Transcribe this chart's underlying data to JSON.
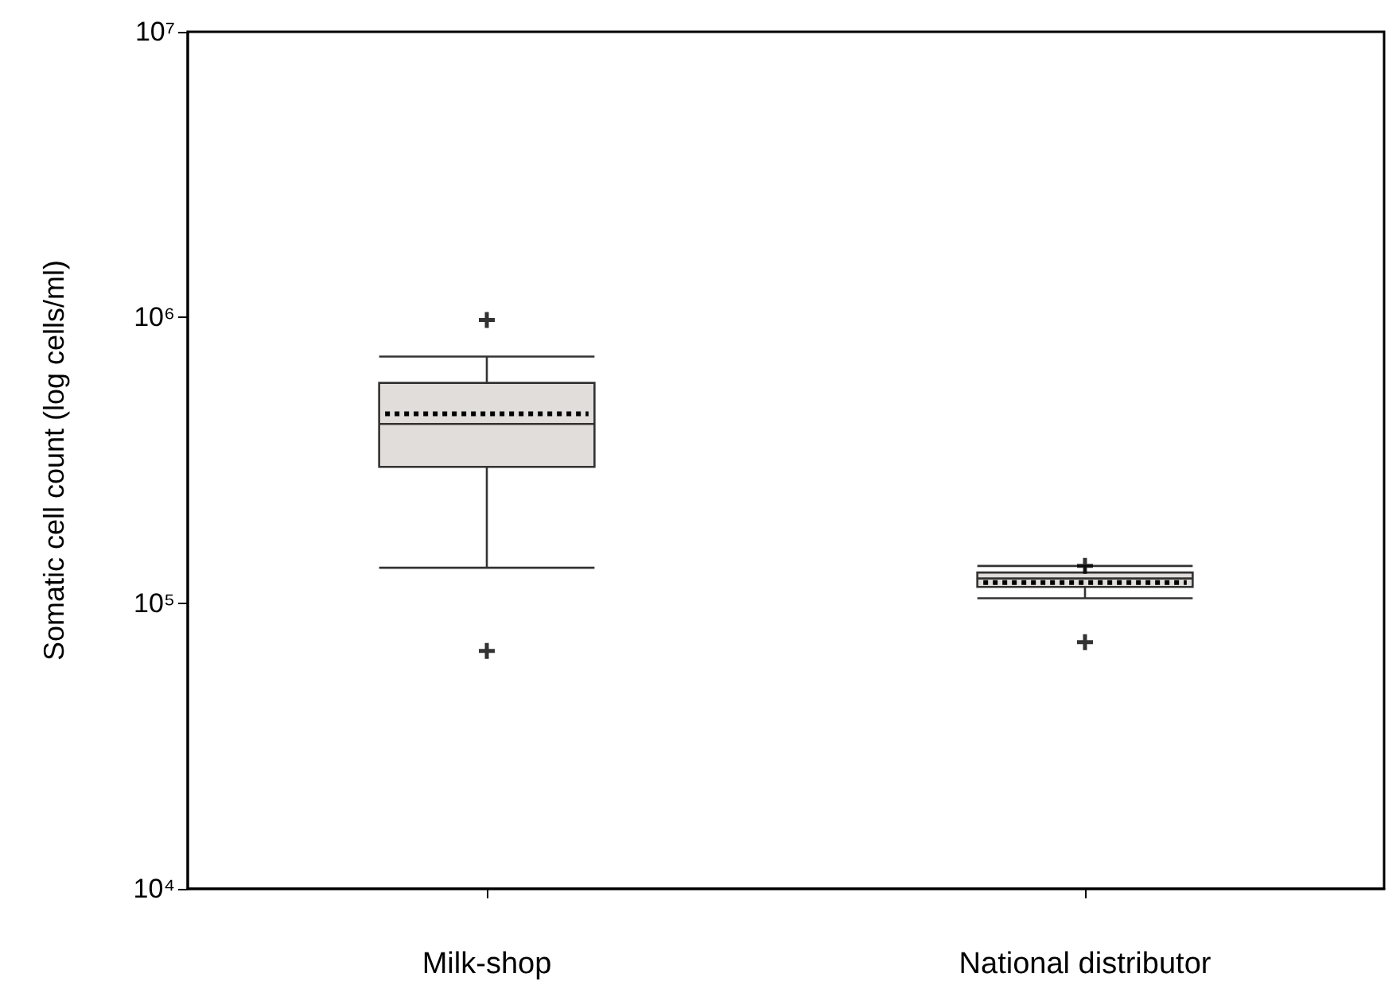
{
  "chart_data": {
    "type": "box",
    "ylabel": "Somatic cell count (log cells/ml)",
    "categories": [
      "Milk-shop",
      "National distributor"
    ],
    "boxes": [
      {
        "low": 133000,
        "q1": 300000,
        "median": 424000,
        "q3": 590000,
        "high": 730000,
        "mean": 460000,
        "outliers": [
          980000,
          68000
        ]
      },
      {
        "low": 104000,
        "q1": 114000,
        "median": 122000,
        "q3": 128000,
        "high": 135000,
        "mean": 118000,
        "outliers": [
          135000,
          73000
        ]
      }
    ],
    "color": "#e0dddb",
    "log": true,
    "ylim": [
      10000,
      10000000
    ],
    "yticks": [
      {
        "value": 10000,
        "label": "10⁴"
      },
      {
        "value": 100000,
        "label": "10⁵"
      },
      {
        "value": 1000000,
        "label": "10⁶"
      },
      {
        "value": 10000000,
        "label": "10⁷"
      }
    ],
    "grid": false,
    "marker": "cross"
  }
}
